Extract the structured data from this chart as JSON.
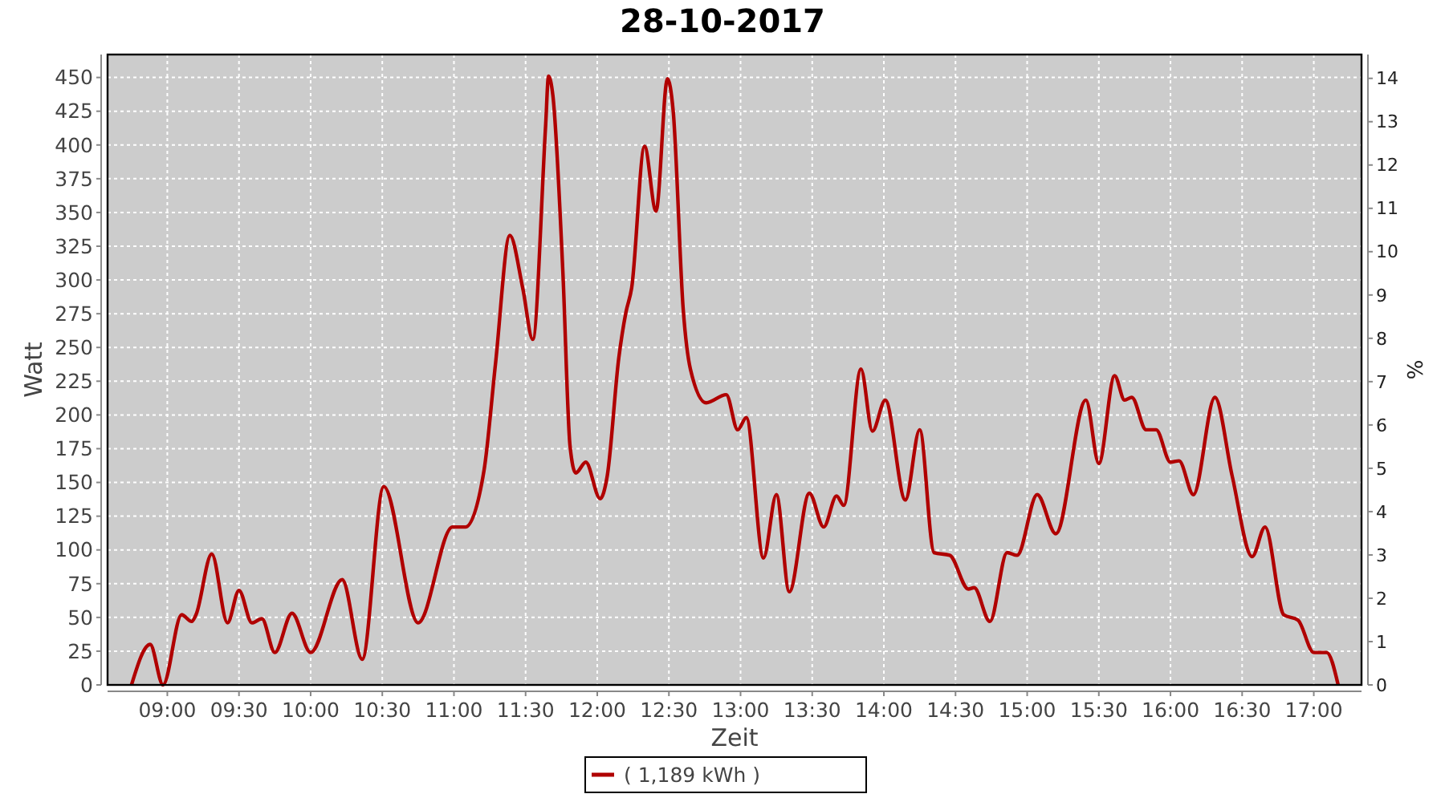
{
  "chart_data": {
    "type": "line",
    "title": "28-10-2017",
    "xlabel": "Zeit",
    "ylabel": "Watt",
    "y2label": "%",
    "xlim": [
      8.583,
      17.333
    ],
    "xticks": [
      {
        "value": 9,
        "label": "09:00"
      },
      {
        "value": 9.5,
        "label": "09:30"
      },
      {
        "value": 10,
        "label": "10:00"
      },
      {
        "value": 10.5,
        "label": "10:30"
      },
      {
        "value": 11,
        "label": "11:00"
      },
      {
        "value": 11.5,
        "label": "11:30"
      },
      {
        "value": 12,
        "label": "12:00"
      },
      {
        "value": 12.5,
        "label": "12:30"
      },
      {
        "value": 13,
        "label": "13:00"
      },
      {
        "value": 13.5,
        "label": "13:30"
      },
      {
        "value": 14,
        "label": "14:00"
      },
      {
        "value": 14.5,
        "label": "14:30"
      },
      {
        "value": 15,
        "label": "15:00"
      },
      {
        "value": 15.5,
        "label": "15:30"
      },
      {
        "value": 16,
        "label": "16:00"
      },
      {
        "value": 16.5,
        "label": "16:30"
      },
      {
        "value": 17,
        "label": "17:00"
      }
    ],
    "ylim": [
      0,
      467
    ],
    "yticks": [
      0,
      25,
      50,
      75,
      100,
      125,
      150,
      175,
      200,
      225,
      250,
      275,
      300,
      325,
      350,
      375,
      400,
      425,
      450
    ],
    "y2lim": [
      0,
      14.55
    ],
    "y2ticks": [
      0,
      1,
      2,
      3,
      4,
      5,
      6,
      7,
      8,
      9,
      10,
      11,
      12,
      13,
      14
    ],
    "grid": true,
    "legend": "bottom",
    "marker": "none",
    "line_style": "solid",
    "series": [
      {
        "name": "( 1,189 kWh )",
        "color": "#b00000",
        "x": [
          8.75,
          8.88,
          8.97,
          9.1,
          9.17,
          9.2,
          9.31,
          9.42,
          9.5,
          9.59,
          9.66,
          9.75,
          9.87,
          10.0,
          10.22,
          10.36,
          10.51,
          10.75,
          10.99,
          11.08,
          11.21,
          11.29,
          11.39,
          11.48,
          11.55,
          11.64,
          11.66,
          11.69,
          11.76,
          11.81,
          11.85,
          11.92,
          12.02,
          12.07,
          12.15,
          12.2,
          12.24,
          12.33,
          12.41,
          12.49,
          12.53,
          12.6,
          12.65,
          12.76,
          12.9,
          12.98,
          13.04,
          13.16,
          13.25,
          13.34,
          13.48,
          13.58,
          13.67,
          13.72,
          13.84,
          13.92,
          14.01,
          14.15,
          14.25,
          14.35,
          14.46,
          14.59,
          14.63,
          14.74,
          14.86,
          14.93,
          15.07,
          15.2,
          15.41,
          15.5,
          15.61,
          15.68,
          15.73,
          15.83,
          15.9,
          16.0,
          16.06,
          16.16,
          16.31,
          16.43,
          16.57,
          16.66,
          16.79,
          16.89,
          17.0,
          17.09,
          17.17
        ],
        "values": [
          0,
          30,
          0,
          52,
          47,
          52,
          97,
          46,
          70,
          46,
          49,
          24,
          53,
          24,
          78,
          19,
          147,
          46,
          117,
          117,
          159,
          238,
          333,
          294,
          256,
          415,
          451,
          437,
          306,
          177,
          157,
          165,
          138,
          155,
          242,
          276,
          294,
          399,
          351,
          449,
          425,
          278,
          234,
          209,
          215,
          189,
          198,
          94,
          141,
          69,
          142,
          117,
          140,
          133,
          234,
          188,
          211,
          137,
          189,
          98,
          96,
          71,
          72,
          47,
          98,
          96,
          141,
          112,
          211,
          164,
          229,
          211,
          213,
          189,
          189,
          165,
          166,
          141,
          213,
          155,
          95,
          117,
          52,
          48,
          24,
          24,
          0
        ]
      }
    ]
  }
}
